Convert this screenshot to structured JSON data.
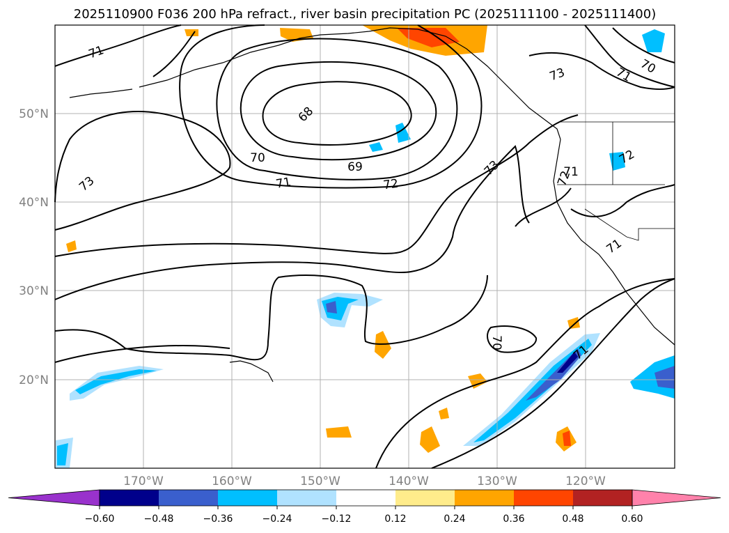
{
  "title": "2025110900 F036 200 hPa refract., river basin precipitation PC (2025111100 - 2025111400)",
  "lat_labels": [
    "50°N",
    "40°N",
    "30°N",
    "20°N"
  ],
  "lon_labels": [
    "170°W",
    "160°W",
    "150°W",
    "140°W",
    "130°W",
    "120°W"
  ],
  "contour_labels": [
    "71",
    "73",
    "68",
    "70",
    "69",
    "71",
    "72",
    "73",
    "72",
    "71",
    "70",
    "73",
    "71",
    "71",
    "72",
    "71",
    "70"
  ],
  "colorbar": {
    "ticks": [
      "−0.60",
      "−0.48",
      "−0.36",
      "−0.24",
      "−0.12",
      "0.12",
      "0.24",
      "0.36",
      "0.48",
      "0.60"
    ],
    "colors": [
      "#9932cc",
      "#00008b",
      "#3a5fcd",
      "#00bfff",
      "#b0e2ff",
      "#ffffff",
      "#ffec8b",
      "#ffa500",
      "#ff4500",
      "#b22222",
      "#ff82ab"
    ]
  }
}
